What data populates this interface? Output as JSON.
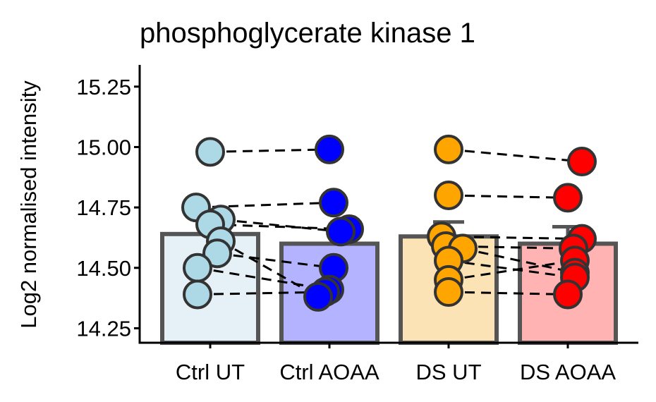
{
  "chart_data": {
    "type": "bar",
    "title": "phosphoglycerate kinase 1",
    "xlabel": "",
    "ylabel": "Log2 normalised intensity",
    "ylim": [
      14.19,
      15.34
    ],
    "yticks": [
      14.25,
      14.5,
      14.75,
      15.0,
      15.25
    ],
    "ytick_labels": [
      "14.25",
      "14.50",
      "14.75",
      "15.00",
      "15.25"
    ],
    "grid": false,
    "legend": "none",
    "categories": [
      "Ctrl UT",
      "Ctrl AOAA",
      "DS UT",
      "DS AOAA"
    ],
    "bar_values": [
      14.64,
      14.6,
      14.63,
      14.6
    ],
    "error_upper": [
      null,
      null,
      14.69,
      14.67
    ],
    "bar_fill_colors": [
      "#e6f1f7",
      "#b3b3ff",
      "#fce3b5",
      "#ffb3b3"
    ],
    "point_colors": [
      "#add8e6",
      "#0000ff",
      "#ffa500",
      "#ff0000"
    ],
    "bar_outline_color": "#555555",
    "points": [
      [
        14.98,
        14.75,
        14.7,
        14.68,
        14.61,
        14.56,
        14.5,
        14.39
      ],
      [
        14.99,
        14.77,
        14.66,
        14.65,
        14.5,
        14.41,
        14.4,
        14.38
      ],
      [
        14.99,
        14.8,
        14.63,
        14.59,
        14.58,
        14.53,
        14.45,
        14.4
      ],
      [
        14.94,
        14.79,
        14.62,
        14.58,
        14.53,
        14.48,
        14.46,
        14.39
      ]
    ],
    "pairs": [
      {
        "from": 0,
        "to": 1,
        "values": [
          [
            14.98,
            14.99
          ],
          [
            14.75,
            14.77
          ],
          [
            14.7,
            14.65
          ],
          [
            14.68,
            14.66
          ],
          [
            14.61,
            14.38
          ],
          [
            14.56,
            14.5
          ],
          [
            14.5,
            14.41
          ],
          [
            14.39,
            14.4
          ]
        ]
      },
      {
        "from": 2,
        "to": 3,
        "values": [
          [
            14.99,
            14.94
          ],
          [
            14.8,
            14.79
          ],
          [
            14.63,
            14.62
          ],
          [
            14.59,
            14.58
          ],
          [
            14.58,
            14.48
          ],
          [
            14.53,
            14.46
          ],
          [
            14.45,
            14.53
          ],
          [
            14.4,
            14.39
          ]
        ]
      }
    ]
  }
}
